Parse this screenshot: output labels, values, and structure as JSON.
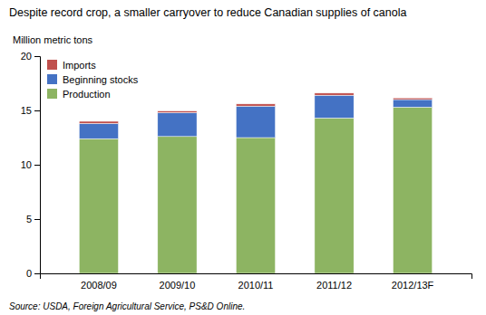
{
  "chart_data": {
    "type": "bar",
    "stacked": true,
    "title": "Despite record crop, a smaller carryover to reduce Canadian supplies of canola",
    "ylabel": "Million metric tons",
    "source": "Source: USDA, Foreign Agricultural Service, PS&D Online.",
    "categories": [
      "2008/09",
      "2009/10",
      "2010/11",
      "2011/12",
      "2012/13F"
    ],
    "series": [
      {
        "name": "Production",
        "color": "#8db462",
        "values": [
          12.4,
          12.6,
          12.5,
          14.3,
          15.3
        ]
      },
      {
        "name": "Beginning stocks",
        "color": "#4472c4",
        "values": [
          1.4,
          2.2,
          2.9,
          2.1,
          0.7
        ]
      },
      {
        "name": "Imports",
        "color": "#c0504d",
        "values": [
          0.2,
          0.15,
          0.2,
          0.2,
          0.15
        ]
      }
    ],
    "ylim": [
      0,
      20
    ],
    "yticks": [
      0,
      5,
      10,
      15,
      20
    ],
    "grid": false,
    "legend": "upper-left"
  }
}
